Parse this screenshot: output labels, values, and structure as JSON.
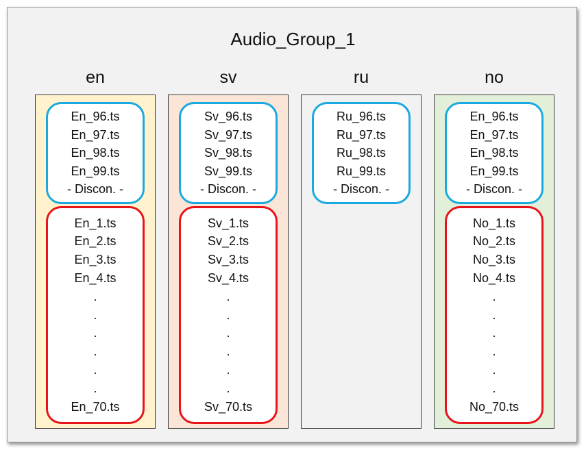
{
  "title": "Audio_Group_1",
  "colors": {
    "frame_background": "#f2f2f2",
    "blue_border": "#1aa9e0",
    "red_border": "#e8141a"
  },
  "columns": [
    {
      "label": "en",
      "background": "#fff2cc",
      "blue_items": [
        "En_96.ts",
        "En_97.ts",
        "En_98.ts",
        "En_99.ts",
        "- Discon. -"
      ],
      "red_items": [
        "En_1.ts",
        "En_2.ts",
        "En_3.ts",
        "En_4.ts",
        ".",
        ".",
        ".",
        ".",
        ".",
        ".",
        "En_70.ts"
      ]
    },
    {
      "label": "sv",
      "background": "#fbe5d6",
      "blue_items": [
        "Sv_96.ts",
        "Sv_97.ts",
        "Sv_98.ts",
        "Sv_99.ts",
        "- Discon. -"
      ],
      "red_items": [
        "Sv_1.ts",
        "Sv_2.ts",
        "Sv_3.ts",
        "Sv_4.ts",
        ".",
        ".",
        ".",
        ".",
        ".",
        ".",
        "Sv_70.ts"
      ]
    },
    {
      "label": "ru",
      "background": "#f2f2f2",
      "blue_items": [
        "Ru_96.ts",
        "Ru_97.ts",
        "Ru_98.ts",
        "Ru_99.ts",
        "- Discon. -"
      ],
      "red_items": []
    },
    {
      "label": "no",
      "background": "#e2f0d9",
      "blue_items": [
        "En_96.ts",
        "En_97.ts",
        "En_98.ts",
        "En_99.ts",
        "- Discon. -"
      ],
      "red_items": [
        "No_1.ts",
        "No_2.ts",
        "No_3.ts",
        "No_4.ts",
        ".",
        ".",
        ".",
        ".",
        ".",
        ".",
        "No_70.ts"
      ]
    }
  ]
}
